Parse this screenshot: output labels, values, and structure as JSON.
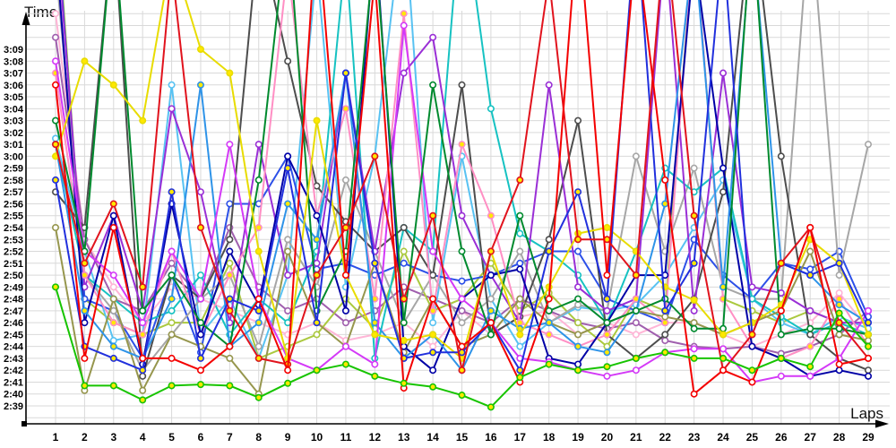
{
  "chart_data": {
    "type": "line",
    "title": "",
    "xlabel": "Laps",
    "ylabel": "Time",
    "x_ticks": [
      1,
      2,
      3,
      4,
      5,
      6,
      7,
      8,
      9,
      10,
      11,
      12,
      13,
      14,
      15,
      16,
      17,
      18,
      19,
      20,
      21,
      22,
      23,
      24,
      25,
      26,
      27,
      28,
      29
    ],
    "y_ticks": [
      "2:39",
      "2:40",
      "2:41",
      "2:42",
      "2:43",
      "2:44",
      "2:45",
      "2:46",
      "2:47",
      "2:48",
      "2:49",
      "2:50",
      "2:51",
      "2:52",
      "2:53",
      "2:54",
      "2:55",
      "2:56",
      "2:57",
      "2:58",
      "2:59",
      "3:00",
      "3:01",
      "3:02",
      "3:03",
      "3:04",
      "3:05",
      "3:06",
      "3:07",
      "3:08",
      "3:09"
    ],
    "y_axis_seconds_range": [
      159,
      189
    ],
    "grid": true,
    "legend_position": "none",
    "note": "Lap time chart, ~20 unnamed drivers; values are lap times in seconds (2:39 = 159 s). Values above 193 s run off the top of the plot.",
    "marker_yellow_fill": "#ffe800",
    "series": [
      {
        "name": "light-pink",
        "color": "#ffb5d6",
        "marker": "white",
        "values": [
          192,
          173,
          169,
          166,
          169,
          168,
          167,
          166,
          165,
          166,
          164.5,
          165,
          166,
          164,
          167,
          165,
          166.5,
          167,
          165,
          166,
          165,
          166,
          166,
          165,
          164,
          165,
          166,
          168.5,
          165.5
        ]
      },
      {
        "name": "plum",
        "color": "#a05fae",
        "marker": "white",
        "values": [
          190,
          173,
          168,
          167,
          171,
          168,
          174,
          169,
          167,
          168,
          166,
          167,
          169,
          168,
          167,
          166,
          168,
          167,
          166,
          165.5,
          166,
          164.5,
          164,
          163.8,
          164,
          163.4,
          164,
          165,
          167
        ]
      },
      {
        "name": "yellow-green",
        "color": "#abc93f",
        "marker": "white",
        "values": [
          202,
          168,
          166,
          165,
          166,
          166,
          171,
          163,
          164,
          165,
          168,
          165.5,
          172,
          167,
          168,
          171,
          167,
          168.5,
          166,
          164,
          168,
          167,
          199,
          168,
          167,
          166,
          167,
          166,
          165
        ]
      },
      {
        "name": "sky-blue",
        "color": "#58c2f2",
        "marker": "white",
        "values": [
          181.5,
          172,
          164.5,
          165,
          186,
          165,
          168,
          163,
          170,
          196,
          169,
          180,
          201,
          166,
          180,
          168,
          164,
          166,
          167.3,
          167,
          167.5,
          170,
          174,
          178,
          168,
          166,
          165,
          166.5,
          165.5
        ]
      },
      {
        "name": "royal-blue",
        "color": "#2c50e8",
        "marker": "white",
        "values": [
          201,
          168,
          167,
          163,
          170,
          163.5,
          176,
          176,
          180,
          170.5,
          171,
          170,
          171,
          170,
          169.5,
          170,
          171,
          172,
          172,
          168,
          167,
          166,
          173,
          170,
          168,
          171,
          170.5,
          172,
          166.5
        ]
      },
      {
        "name": "gray",
        "color": "#a6a6a6",
        "marker": "white",
        "values": [
          196,
          170,
          167,
          162,
          165,
          168,
          170,
          164,
          173,
          169,
          178,
          172,
          166,
          170,
          166,
          168,
          172,
          166,
          167.5,
          167,
          180,
          172,
          179,
          169,
          168,
          168,
          201,
          170,
          181
        ]
      },
      {
        "name": "cyan",
        "color": "#16c2c2",
        "marker": "white",
        "values": [
          181,
          170,
          168,
          166,
          167,
          170,
          165,
          168,
          166,
          172,
          197,
          163,
          174,
          172,
          202,
          184,
          173.5,
          172,
          170,
          166,
          172,
          179,
          177,
          179,
          168,
          166.5,
          165,
          166,
          165
        ]
      },
      {
        "name": "dark-gray",
        "color": "#4d4d4d",
        "marker": "white",
        "values": [
          177,
          174,
          200,
          161.5,
          170,
          168,
          173,
          199,
          188,
          177.5,
          174.5,
          172,
          174,
          170,
          186,
          165,
          166.5,
          173,
          183,
          165,
          163,
          165,
          168,
          177,
          201,
          180,
          165,
          163,
          162
        ]
      },
      {
        "name": "purple",
        "color": "#9a2fd6",
        "marker": "white",
        "values": [
          200,
          169,
          175,
          167,
          184,
          177,
          166,
          181,
          170,
          171,
          187,
          172,
          187,
          190,
          175,
          170,
          166,
          186,
          169,
          167,
          168,
          198,
          167,
          187,
          169,
          168.5,
          167,
          166,
          166
        ]
      },
      {
        "name": "pink",
        "color": "#ff8fc4",
        "marker": "yellow",
        "values": [
          187,
          170,
          166,
          165,
          172,
          165,
          170,
          174,
          196,
          175,
          184,
          168,
          192,
          167,
          181,
          175,
          166,
          165,
          164,
          165,
          168,
          166,
          199,
          168,
          164,
          163,
          164,
          168,
          164
        ]
      },
      {
        "name": "olive",
        "color": "#96964d",
        "marker": "white",
        "values": [
          174,
          160.3,
          168,
          160.3,
          165,
          164,
          163,
          160,
          172,
          166,
          164,
          171,
          163.5,
          168,
          164,
          165,
          168,
          166,
          165,
          166,
          167,
          166.5,
          166,
          165,
          166,
          167,
          172,
          165,
          164.5
        ]
      },
      {
        "name": "navy",
        "color": "#0000a6",
        "marker": "white",
        "values": [
          198,
          166,
          175,
          162.5,
          176,
          165,
          172,
          167.5,
          180,
          175,
          167,
          199,
          164,
          162,
          168,
          170,
          170.5,
          163,
          162.5,
          166,
          170,
          170,
          197,
          179,
          164,
          163,
          161.5,
          162,
          161.5
        ]
      },
      {
        "name": "dodger-blue",
        "color": "#2e93e8",
        "marker": "yellow",
        "values": [
          181,
          167,
          164,
          163,
          168,
          186,
          164,
          166,
          176,
          173,
          187,
          166,
          163,
          165,
          162,
          167,
          165.5,
          166,
          164,
          163.5,
          167,
          176,
          198,
          169,
          199,
          171,
          170,
          167.5,
          166
        ]
      },
      {
        "name": "magenta",
        "color": "#d439f7",
        "marker": "white",
        "values": [
          188,
          172,
          170,
          166,
          172,
          168,
          181,
          168,
          163,
          162,
          164,
          162.5,
          191,
          172,
          168,
          166,
          163,
          162.7,
          162,
          161.5,
          162,
          163.5,
          163.8,
          163.8,
          161,
          161.5,
          161.5,
          163,
          167
        ]
      },
      {
        "name": "dark-green",
        "color": "#008a2e",
        "marker": "white",
        "values": [
          183,
          172,
          200,
          167,
          170,
          166,
          164,
          178,
          200,
          167,
          172,
          198,
          166,
          186,
          172,
          165,
          175,
          167,
          168,
          166,
          167,
          168,
          165.5,
          165.5,
          200,
          165,
          165.5,
          165.5,
          165
        ]
      },
      {
        "name": "yellow",
        "color": "#e8dc00",
        "marker": "yellow",
        "values": [
          180,
          188,
          186,
          183,
          197,
          189,
          187,
          172,
          163,
          183,
          170,
          165,
          164.5,
          165,
          163,
          172,
          165,
          169,
          173.5,
          174,
          172,
          169,
          167.9,
          165,
          166,
          167.5,
          173,
          171,
          165
        ]
      },
      {
        "name": "blue",
        "color": "#2130dd",
        "marker": "yellow",
        "values": [
          178,
          164,
          163,
          162,
          177,
          163,
          168,
          167,
          179,
          166,
          187,
          171,
          163,
          163.5,
          163.5,
          166,
          162,
          172,
          177,
          168,
          200,
          167,
          171,
          198,
          165,
          171,
          170,
          171,
          166
        ]
      },
      {
        "name": "crimson",
        "color": "#e1131d",
        "marker": "yellow",
        "values": [
          181,
          171,
          176,
          169,
          196,
          174,
          167,
          163,
          162.5,
          170,
          174,
          180,
          168,
          175,
          162,
          172,
          178,
          195,
          173,
          173,
          170,
          199,
          175,
          162,
          165,
          171,
          174,
          166,
          163
        ]
      },
      {
        "name": "red",
        "color": "#f40000",
        "marker": "white",
        "values": [
          186,
          163,
          174,
          163,
          163,
          162,
          164,
          168,
          162,
          200,
          170,
          195,
          160.5,
          168,
          164,
          166,
          161,
          168,
          200,
          170,
          198,
          178,
          160,
          162,
          161,
          167,
          174,
          162.5,
          163
        ]
      },
      {
        "name": "green",
        "color": "#17c400",
        "marker": "yellow",
        "values": [
          169,
          160.7,
          160.7,
          159.5,
          160.7,
          160.8,
          160.7,
          159.7,
          160.9,
          162,
          162.5,
          161.5,
          160.9,
          160.6,
          159.9,
          158.9,
          161.4,
          162.5,
          162,
          162.3,
          163,
          163.5,
          163,
          163,
          162,
          163,
          162.3,
          166.8,
          164
        ]
      }
    ]
  }
}
